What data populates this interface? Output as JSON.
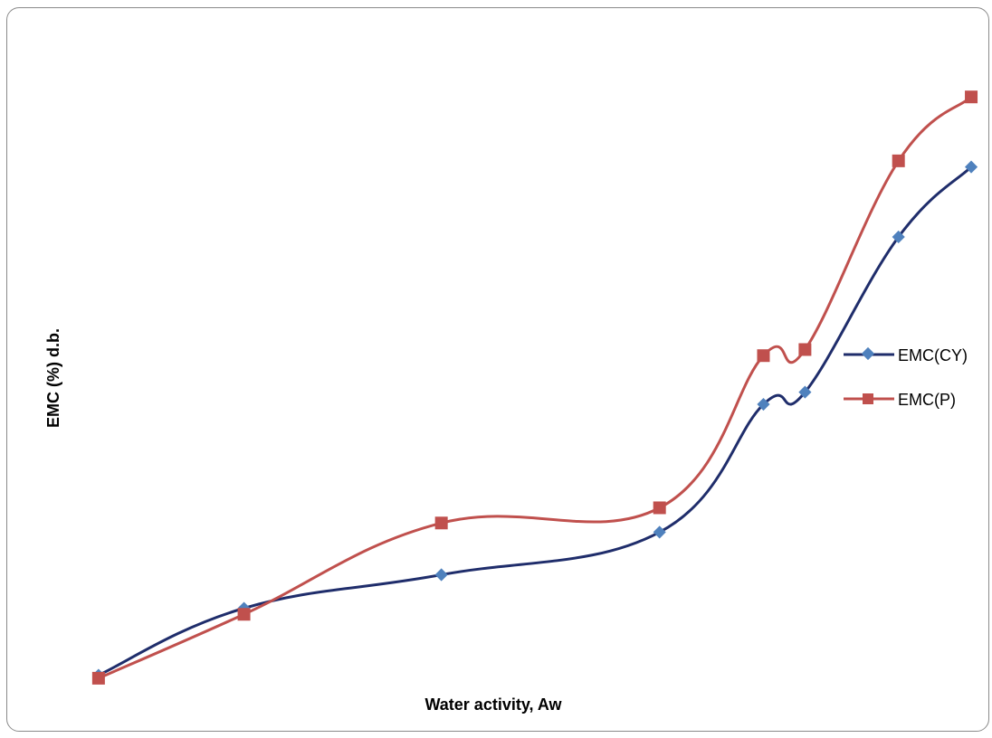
{
  "chart_data": {
    "type": "line",
    "title": "",
    "xlabel": "Water activity, Aw",
    "ylabel": "EMC (%) d.b.",
    "xlim": [
      0.05,
      0.97
    ],
    "ylim": [
      0,
      100
    ],
    "grid": false,
    "legend": "right",
    "x": [
      0.11,
      0.25,
      0.44,
      0.65,
      0.75,
      0.79,
      0.88,
      0.95
    ],
    "series": [
      {
        "name": "EMC(CY)",
        "color": "#1f2d6b",
        "marker": "diamond",
        "marker_color": "#4f81bd",
        "values": [
          2,
          13,
          18.5,
          25.5,
          46.5,
          48.5,
          74,
          85.5
        ]
      },
      {
        "name": "EMC(P)",
        "color": "#c0504d",
        "marker": "square",
        "marker_color": "#c0504d",
        "values": [
          1.5,
          12,
          27,
          29.5,
          54.5,
          55.5,
          86.5,
          97
        ]
      }
    ]
  }
}
